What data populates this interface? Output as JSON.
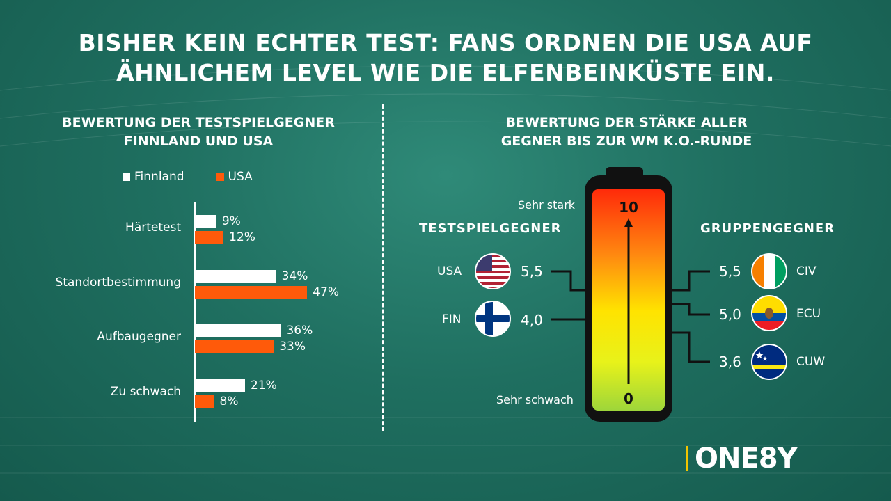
{
  "title_line1": "BISHER KEIN ECHTER TEST: FANS ORDNEN DIE USA AUF",
  "title_line2": "ÄHNLICHEM LEVEL WIE DIE ELFENBEINKÜSTE EIN.",
  "left_chart": {
    "title_line1": "BEWERTUNG DER TESTSPIELGEGNER",
    "title_line2": "FINNLAND UND USA"
  },
  "right_chart": {
    "title_line1": "BEWERTUNG DER STÄRKE ALLER",
    "title_line2": "GEGNER BIS ZUR WM K.O.-RUNDE",
    "left_heading": "TESTSPIELGEGNER",
    "right_heading": "GRUPPENGEGNER",
    "scale_top_label": "Sehr stark",
    "scale_bottom_label": "Sehr schwach",
    "scale_max_text": "10",
    "scale_min_text": "0"
  },
  "logo": {
    "text": "ONE8Y",
    "accent": "#f2c400"
  },
  "colors": {
    "finnland": "#ffffff",
    "usa": "#ff5a0a"
  },
  "chart_data": [
    {
      "type": "bar",
      "orientation": "horizontal",
      "title": "BEWERTUNG DER TESTSPIELGEGNER FINNLAND UND USA",
      "categories": [
        "Härtetest",
        "Standortbestimmung",
        "Aufbaugegner",
        "Zu schwach"
      ],
      "series": [
        {
          "name": "Finnland",
          "values": [
            9,
            34,
            36,
            21
          ],
          "labels": [
            "9%",
            "34%",
            "36%",
            "21%"
          ],
          "color": "#ffffff"
        },
        {
          "name": "USA",
          "values": [
            12,
            47,
            33,
            8
          ],
          "labels": [
            "12%",
            "47%",
            "33%",
            "8%"
          ],
          "color": "#ff5a0a"
        }
      ],
      "xlim": [
        0,
        50
      ],
      "legend": "top",
      "grid": false
    },
    {
      "type": "scale",
      "title": "BEWERTUNG DER STÄRKE ALLER GEGNER BIS ZUR WM K.O.-RUNDE",
      "ylim": [
        0,
        10
      ],
      "groups": [
        {
          "name": "TESTSPIELGEGNER",
          "items": [
            {
              "label": "USA",
              "value": 5.5,
              "value_text": "5,5",
              "flag": "usa-flag"
            },
            {
              "label": "FIN",
              "value": 4.0,
              "value_text": "4,0",
              "flag": "finland-flag"
            }
          ]
        },
        {
          "name": "GRUPPENGEGNER",
          "items": [
            {
              "label": "CIV",
              "value": 5.5,
              "value_text": "5,5",
              "flag": "ivory-coast-flag"
            },
            {
              "label": "ECU",
              "value": 5.0,
              "value_text": "5,0",
              "flag": "ecuador-flag"
            },
            {
              "label": "CUW",
              "value": 3.6,
              "value_text": "3,6",
              "flag": "curacao-flag"
            }
          ]
        }
      ]
    }
  ]
}
